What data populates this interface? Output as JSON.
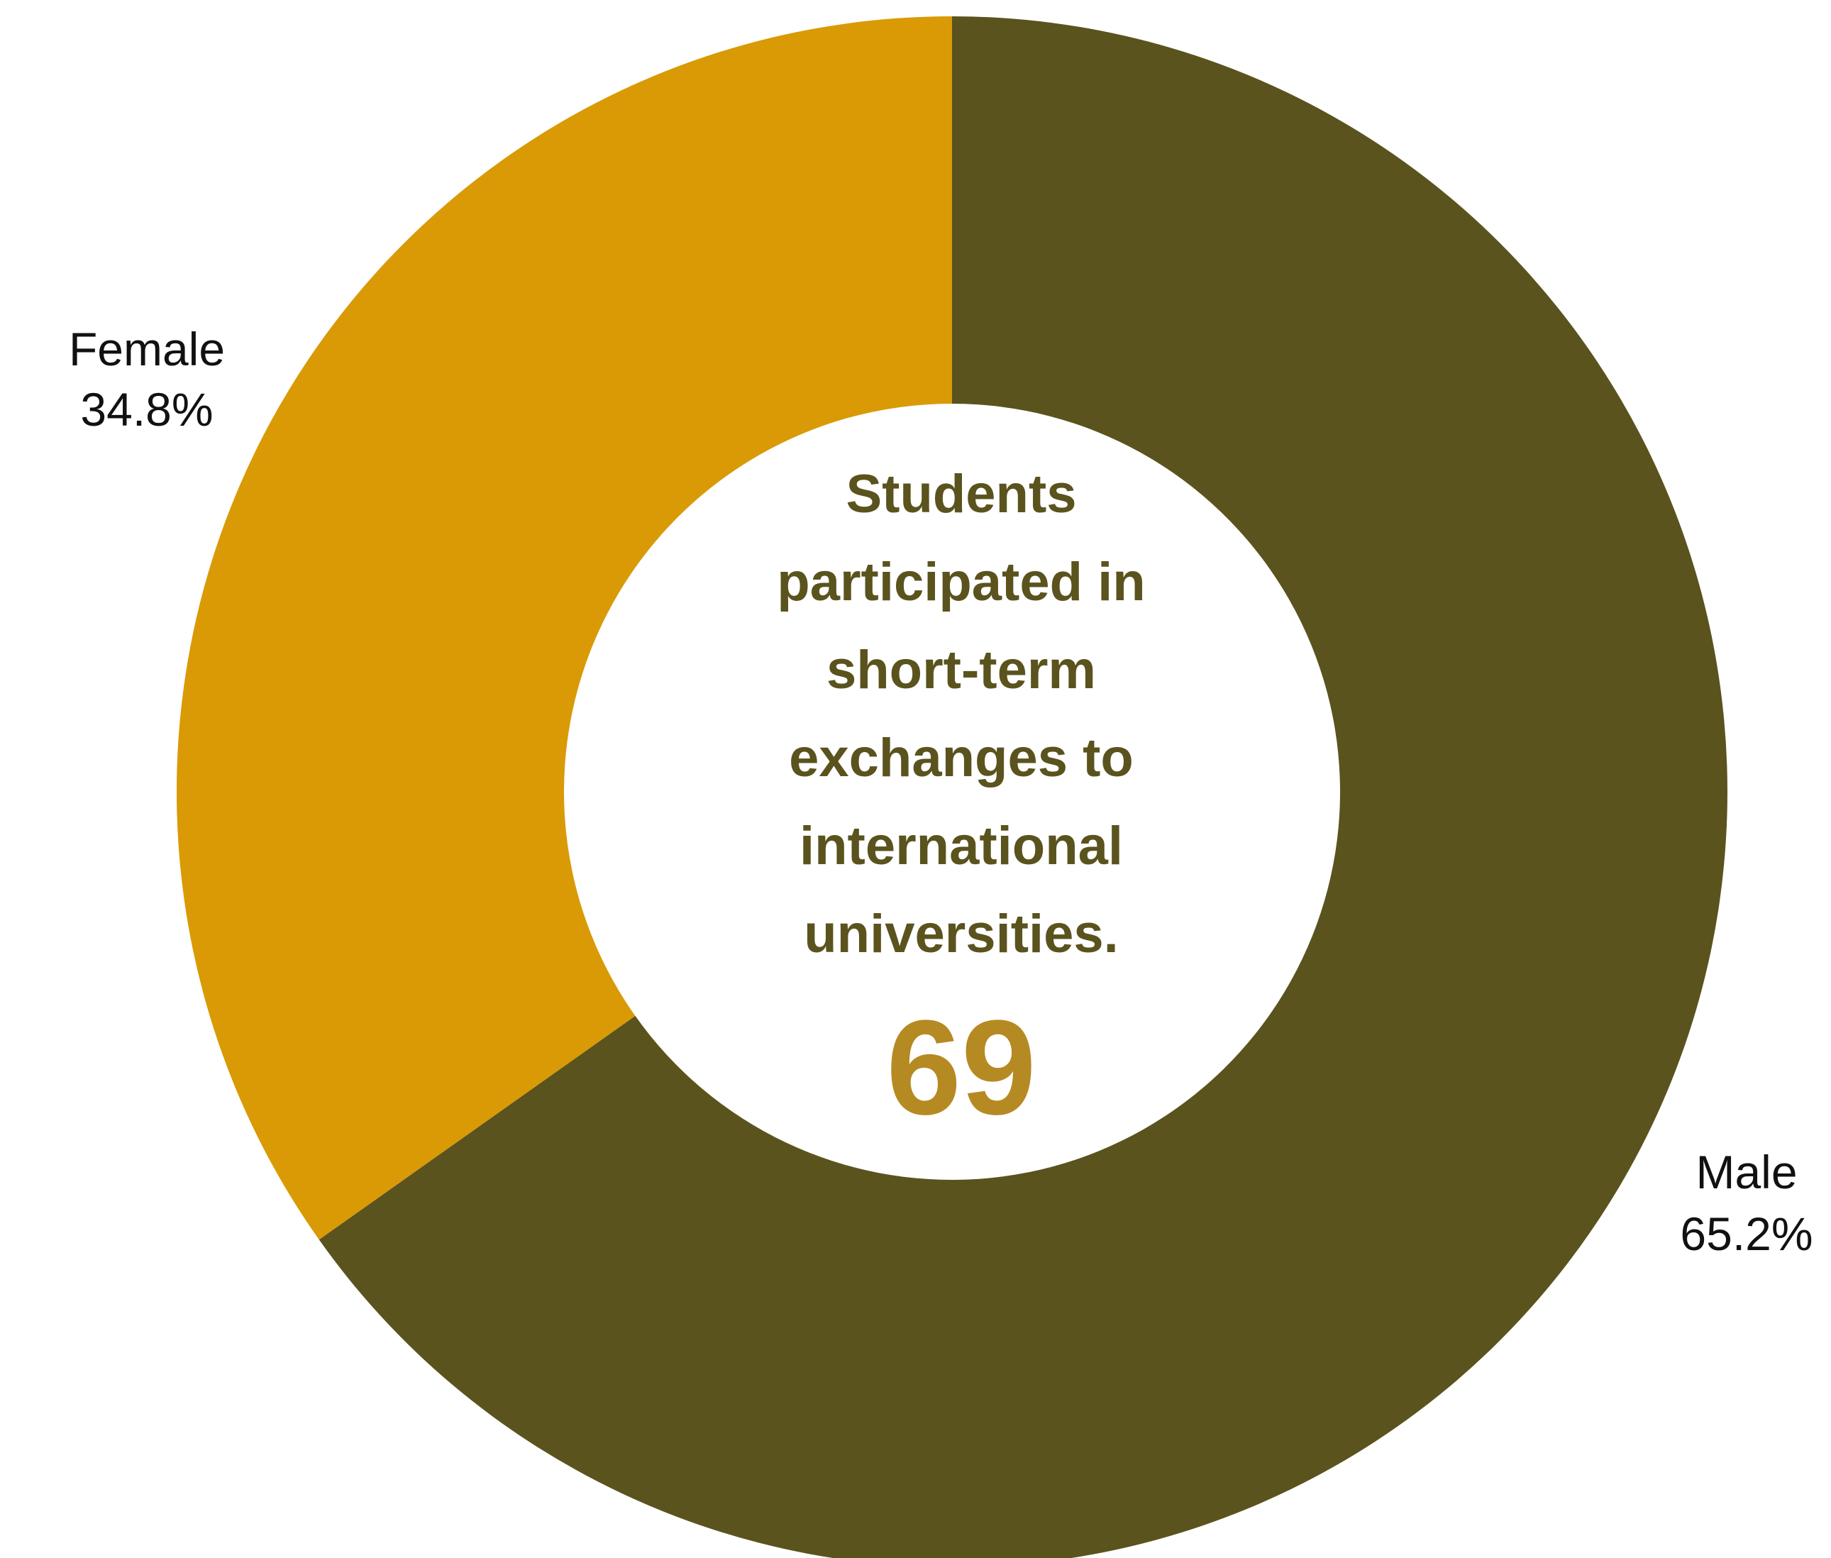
{
  "chart_data": {
    "type": "pie",
    "donut": true,
    "slices": [
      {
        "label": "Male",
        "value_text": "65.2%",
        "value": 65.2,
        "color": "#5A531D"
      },
      {
        "label": "Female",
        "value_text": "34.8%",
        "value": 34.8,
        "color": "#D99A06"
      }
    ],
    "center": {
      "lines": [
        "Students",
        "participated in",
        "short-term",
        "exchanges to",
        "international",
        "universities."
      ],
      "value": "69",
      "text_color": "#5A531D",
      "value_color": "#B68A22"
    }
  }
}
